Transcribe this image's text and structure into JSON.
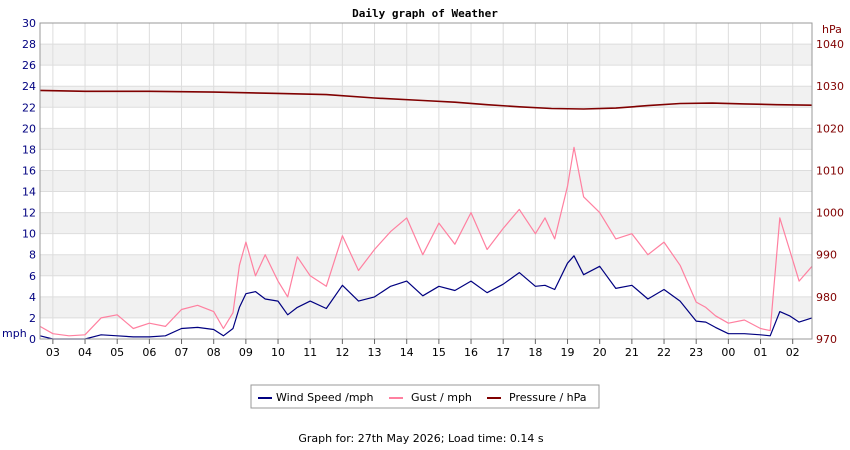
{
  "chart_data": {
    "type": "line",
    "title": "Daily graph of Weather",
    "left_axis": {
      "unit": "mph",
      "ylim": [
        0,
        30
      ],
      "ticks": [
        0,
        2,
        4,
        6,
        8,
        10,
        12,
        14,
        16,
        18,
        20,
        22,
        24,
        26,
        28,
        30
      ]
    },
    "right_axis": {
      "unit": "hPa",
      "ylim": [
        970,
        1045
      ],
      "ticks": [
        970,
        980,
        990,
        1000,
        1010,
        1020,
        1030,
        1040
      ]
    },
    "x_ticks": [
      "03",
      "04",
      "05",
      "06",
      "07",
      "08",
      "09",
      "10",
      "11",
      "12",
      "13",
      "14",
      "15",
      "16",
      "17",
      "18",
      "19",
      "20",
      "21",
      "22",
      "23",
      "00",
      "01",
      "02"
    ],
    "x_range_hours": [
      2.6,
      26.6
    ],
    "grid": true,
    "legend_position": "bottom-center",
    "series": [
      {
        "name": "Wind Speed /mph",
        "axis": "left",
        "color": "#000080",
        "x": [
          2.6,
          3.0,
          3.5,
          4.0,
          4.5,
          5.0,
          5.5,
          6.0,
          6.5,
          7.0,
          7.5,
          8.0,
          8.3,
          8.6,
          8.8,
          9.0,
          9.3,
          9.6,
          10.0,
          10.3,
          10.6,
          11.0,
          11.5,
          12.0,
          12.5,
          13.0,
          13.5,
          14.0,
          14.5,
          15.0,
          15.5,
          16.0,
          16.5,
          17.0,
          17.5,
          18.0,
          18.3,
          18.6,
          19.0,
          19.2,
          19.5,
          20.0,
          20.5,
          21.0,
          21.5,
          22.0,
          22.5,
          23.0,
          23.3,
          23.6,
          24.0,
          24.5,
          25.0,
          25.3,
          25.6,
          25.9,
          26.2,
          26.6
        ],
        "values": [
          0.3,
          0,
          0,
          0,
          0.4,
          0.3,
          0.2,
          0.2,
          0.3,
          1.0,
          1.1,
          0.9,
          0.3,
          1.0,
          3.0,
          4.3,
          4.5,
          3.8,
          3.6,
          2.3,
          3.0,
          3.6,
          2.9,
          5.1,
          3.6,
          4.0,
          5.0,
          5.5,
          4.1,
          5.0,
          4.6,
          5.5,
          4.4,
          5.2,
          6.3,
          5.0,
          5.1,
          4.7,
          7.2,
          7.9,
          6.1,
          6.9,
          4.8,
          5.1,
          3.8,
          4.7,
          3.6,
          1.7,
          1.6,
          1.1,
          0.5,
          0.5,
          0.4,
          0.3,
          2.6,
          2.2,
          1.6,
          2.0
        ]
      },
      {
        "name": "Gust / mph",
        "axis": "left",
        "color": "#ff80a0",
        "x": [
          2.6,
          3.0,
          3.5,
          4.0,
          4.5,
          5.0,
          5.5,
          6.0,
          6.5,
          7.0,
          7.5,
          8.0,
          8.3,
          8.6,
          8.8,
          9.0,
          9.3,
          9.6,
          10.0,
          10.3,
          10.6,
          11.0,
          11.5,
          12.0,
          12.5,
          13.0,
          13.5,
          14.0,
          14.5,
          15.0,
          15.5,
          16.0,
          16.5,
          17.0,
          17.5,
          18.0,
          18.3,
          18.6,
          19.0,
          19.2,
          19.5,
          20.0,
          20.5,
          21.0,
          21.5,
          22.0,
          22.5,
          23.0,
          23.3,
          23.6,
          24.0,
          24.5,
          25.0,
          25.3,
          25.6,
          25.9,
          26.2,
          26.6
        ],
        "values": [
          1.2,
          0.5,
          0.3,
          0.4,
          2.0,
          2.3,
          1.0,
          1.5,
          1.2,
          2.8,
          3.2,
          2.6,
          1.0,
          2.5,
          7.0,
          9.2,
          6.0,
          8.0,
          5.5,
          4.0,
          7.8,
          6.0,
          5.0,
          9.8,
          6.5,
          8.5,
          10.2,
          11.5,
          8.0,
          11.0,
          9.0,
          12.0,
          8.5,
          10.5,
          12.3,
          10.0,
          11.5,
          9.5,
          14.5,
          18.2,
          13.5,
          12.0,
          9.5,
          10.0,
          8.0,
          9.2,
          7.0,
          3.5,
          3.0,
          2.2,
          1.5,
          1.8,
          1.0,
          0.8,
          11.5,
          8.5,
          5.5,
          6.9
        ]
      },
      {
        "name": "Pressure / hPa",
        "axis": "right",
        "color": "#800000",
        "x": [
          2.6,
          4.0,
          6.0,
          8.0,
          10.0,
          11.5,
          13.0,
          14.5,
          15.5,
          16.5,
          17.5,
          18.5,
          19.5,
          20.5,
          21.5,
          22.5,
          23.5,
          24.5,
          25.5,
          26.6
        ],
        "values": [
          1029.0,
          1028.8,
          1028.8,
          1028.6,
          1028.3,
          1028.0,
          1027.2,
          1026.6,
          1026.2,
          1025.6,
          1025.1,
          1024.7,
          1024.6,
          1024.8,
          1025.4,
          1025.9,
          1026.0,
          1025.8,
          1025.6,
          1025.5
        ]
      }
    ]
  },
  "footer": "Graph for: 27th May 2026; Load time: 0.14 s"
}
